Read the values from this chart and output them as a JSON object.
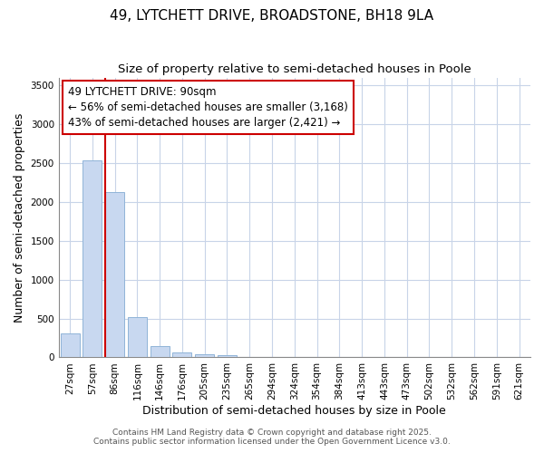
{
  "title_line1": "49, LYTCHETT DRIVE, BROADSTONE, BH18 9LA",
  "title_line2": "Size of property relative to semi-detached houses in Poole",
  "xlabel": "Distribution of semi-detached houses by size in Poole",
  "ylabel": "Number of semi-detached properties",
  "bar_color": "#c8d8f0",
  "bar_edge_color": "#90b4d8",
  "background_color": "#ffffff",
  "grid_color": "#c8d4e8",
  "marker_line_color": "#cc0000",
  "annotation_text_line1": "49 LYTCHETT DRIVE: 90sqm",
  "annotation_text_line2": "← 56% of semi-detached houses are smaller (3,168)",
  "annotation_text_line3": "43% of semi-detached houses are larger (2,421) →",
  "annotation_fontsize": 8.5,
  "categories": [
    "27sqm",
    "57sqm",
    "86sqm",
    "116sqm",
    "146sqm",
    "176sqm",
    "205sqm",
    "235sqm",
    "265sqm",
    "294sqm",
    "324sqm",
    "354sqm",
    "384sqm",
    "413sqm",
    "443sqm",
    "473sqm",
    "502sqm",
    "532sqm",
    "562sqm",
    "591sqm",
    "621sqm"
  ],
  "values": [
    310,
    2530,
    2130,
    520,
    150,
    65,
    35,
    25,
    0,
    0,
    0,
    0,
    0,
    0,
    0,
    0,
    0,
    0,
    0,
    0,
    0
  ],
  "marker_bar_index": 2,
  "ylim": [
    0,
    3600
  ],
  "yticks": [
    0,
    500,
    1000,
    1500,
    2000,
    2500,
    3000,
    3500
  ],
  "footnote1": "Contains HM Land Registry data © Crown copyright and database right 2025.",
  "footnote2": "Contains public sector information licensed under the Open Government Licence v3.0.",
  "title_fontsize": 11,
  "subtitle_fontsize": 9.5,
  "axis_label_fontsize": 9,
  "tick_fontsize": 7.5,
  "footnote_fontsize": 6.5
}
